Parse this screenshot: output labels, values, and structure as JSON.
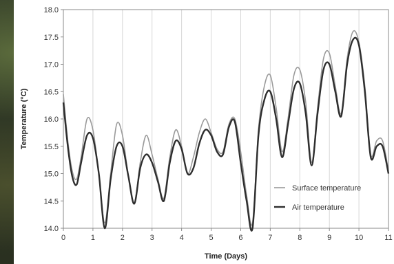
{
  "chart_data": {
    "type": "line",
    "xlabel": "Time (Days)",
    "ylabel": "Temperature (°C)",
    "xlim": [
      0,
      11
    ],
    "ylim": [
      14.0,
      18.0
    ],
    "x_ticks": [
      "0",
      "1",
      "2",
      "3",
      "4",
      "5",
      "6",
      "7",
      "8",
      "9",
      "10",
      "11"
    ],
    "y_ticks": [
      "14.0",
      "14.5",
      "15.0",
      "15.5",
      "16.0",
      "16.5",
      "17.0",
      "17.5",
      "18.0"
    ],
    "grid": "vertical",
    "legend_position": "bottom-right",
    "series": [
      {
        "name": "Surface temperature",
        "color": "#9a9a9a",
        "x": [
          0,
          0.15,
          0.3,
          0.45,
          0.6,
          0.8,
          1.0,
          1.2,
          1.4,
          1.6,
          1.8,
          2.0,
          2.2,
          2.4,
          2.6,
          2.8,
          3.0,
          3.2,
          3.4,
          3.6,
          3.8,
          4.0,
          4.2,
          4.4,
          4.6,
          4.8,
          5.0,
          5.2,
          5.4,
          5.6,
          5.8,
          6.0,
          6.2,
          6.4,
          6.6,
          6.8,
          7.0,
          7.2,
          7.4,
          7.6,
          7.8,
          8.0,
          8.2,
          8.4,
          8.6,
          8.8,
          9.0,
          9.2,
          9.4,
          9.6,
          9.8,
          10.0,
          10.2,
          10.4,
          10.6,
          10.8,
          11.0
        ],
        "y": [
          16.45,
          15.6,
          15.05,
          14.9,
          15.3,
          16.0,
          15.8,
          15.0,
          14.1,
          15.0,
          15.9,
          15.7,
          14.95,
          14.45,
          15.2,
          15.7,
          15.35,
          14.9,
          14.55,
          15.3,
          15.8,
          15.5,
          15.0,
          15.3,
          15.75,
          16.0,
          15.75,
          15.45,
          15.4,
          15.9,
          16.0,
          15.4,
          14.6,
          14.1,
          15.8,
          16.6,
          16.8,
          16.2,
          15.4,
          16.0,
          16.8,
          16.9,
          16.3,
          15.2,
          16.2,
          17.1,
          17.2,
          16.6,
          16.1,
          17.1,
          17.6,
          17.4,
          16.6,
          15.35,
          15.6,
          15.6,
          15.05
        ]
      },
      {
        "name": "Air temperature",
        "color": "#2e2e2e",
        "x": [
          0,
          0.15,
          0.3,
          0.45,
          0.6,
          0.8,
          1.0,
          1.2,
          1.4,
          1.6,
          1.8,
          2.0,
          2.2,
          2.4,
          2.6,
          2.8,
          3.0,
          3.2,
          3.4,
          3.6,
          3.8,
          4.0,
          4.2,
          4.4,
          4.6,
          4.8,
          5.0,
          5.2,
          5.4,
          5.6,
          5.8,
          6.0,
          6.2,
          6.4,
          6.6,
          6.8,
          7.0,
          7.2,
          7.4,
          7.6,
          7.8,
          8.0,
          8.2,
          8.4,
          8.6,
          8.8,
          9.0,
          9.2,
          9.4,
          9.6,
          9.8,
          10.0,
          10.2,
          10.4,
          10.6,
          10.8,
          11.0
        ],
        "y": [
          16.3,
          15.5,
          14.95,
          14.8,
          15.2,
          15.7,
          15.65,
          15.0,
          14.0,
          14.9,
          15.5,
          15.5,
          14.95,
          14.45,
          15.1,
          15.35,
          15.2,
          14.85,
          14.5,
          15.2,
          15.6,
          15.45,
          15.0,
          15.1,
          15.55,
          15.8,
          15.7,
          15.4,
          15.35,
          15.85,
          15.95,
          15.2,
          14.5,
          14.0,
          15.7,
          16.35,
          16.5,
          16.0,
          15.3,
          15.9,
          16.55,
          16.65,
          16.1,
          15.15,
          16.1,
          16.9,
          17.0,
          16.5,
          16.05,
          17.0,
          17.45,
          17.35,
          16.5,
          15.3,
          15.5,
          15.5,
          15.0
        ]
      }
    ]
  }
}
